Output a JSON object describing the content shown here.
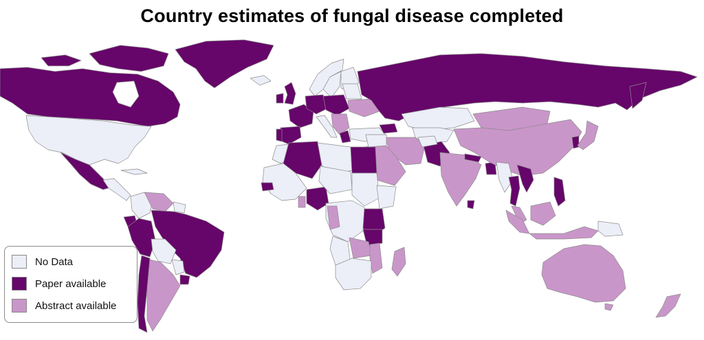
{
  "title": "Country estimates of fungal disease completed",
  "colors": {
    "no_data": "#eceef8",
    "paper": "#66056a",
    "abstract": "#c996c9",
    "border": "#8c8c8c",
    "ocean": "#ffffff"
  },
  "legend": {
    "items": [
      {
        "label": "No Data",
        "color_key": "no_data",
        "icon": "light-swatch"
      },
      {
        "label": "Paper available",
        "color_key": "paper",
        "icon": "dark-purple-swatch"
      },
      {
        "label": "Abstract available",
        "color_key": "abstract",
        "icon": "light-purple-swatch"
      }
    ]
  }
}
